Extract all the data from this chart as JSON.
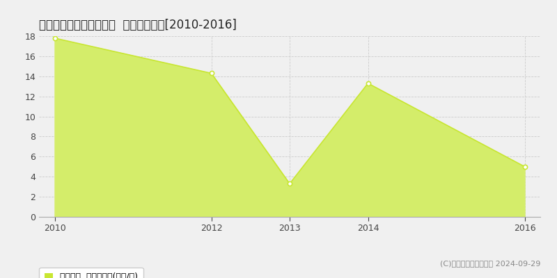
{
  "title": "隠岐郡隠岐の島町城北町  住宅価格推移[2010-2016]",
  "years": [
    2010,
    2012,
    2013,
    2014,
    2016
  ],
  "values": [
    17.8,
    14.3,
    3.3,
    13.3,
    5.0
  ],
  "line_color": "#c8e632",
  "fill_color": "#d4ed6a",
  "marker_color": "#ffffff",
  "marker_edge_color": "#c8e632",
  "ylim": [
    0,
    18
  ],
  "yticks": [
    0,
    2,
    4,
    6,
    8,
    10,
    12,
    14,
    16,
    18
  ],
  "xticks": [
    2010,
    2012,
    2013,
    2014,
    2016
  ],
  "grid_color": "#cccccc",
  "background_color": "#f0f0f0",
  "plot_bg_color": "#f0f0f0",
  "legend_label": "住宅価格  平均坪単価(万円/坪)",
  "copyright_text": "(C)土地価格ドットコム 2024-09-29",
  "title_fontsize": 12,
  "tick_fontsize": 9,
  "legend_fontsize": 9,
  "copyright_fontsize": 8,
  "xlim_left": 2009.8,
  "xlim_right": 2016.2
}
